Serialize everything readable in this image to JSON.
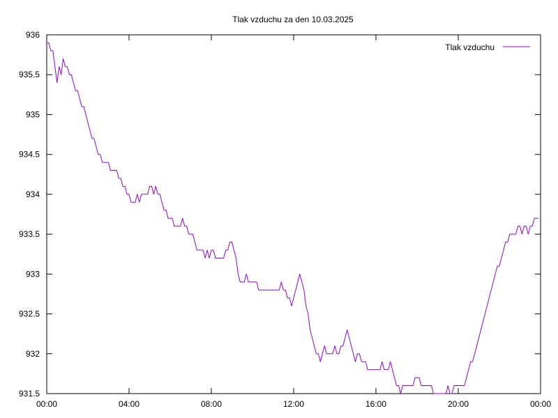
{
  "chart_data": {
    "type": "line",
    "title": "Tlak vzduchu za den 10.03.2025",
    "xlabel": "",
    "ylabel": "",
    "x_unit": "hours",
    "xlim": [
      0,
      24
    ],
    "ylim": [
      931.5,
      936
    ],
    "yticks": [
      {
        "value": 931.5,
        "label": "931.5"
      },
      {
        "value": 932,
        "label": "932"
      },
      {
        "value": 932.5,
        "label": "932.5"
      },
      {
        "value": 933,
        "label": "933"
      },
      {
        "value": 933.5,
        "label": "933.5"
      },
      {
        "value": 934,
        "label": "934"
      },
      {
        "value": 934.5,
        "label": "934.5"
      },
      {
        "value": 935,
        "label": "935"
      },
      {
        "value": 935.5,
        "label": "935.5"
      },
      {
        "value": 936,
        "label": "936"
      }
    ],
    "xticks": [
      {
        "value": 0,
        "label": "00:00"
      },
      {
        "value": 4,
        "label": "04:00"
      },
      {
        "value": 8,
        "label": "08:00"
      },
      {
        "value": 12,
        "label": "12:00"
      },
      {
        "value": 16,
        "label": "16:00"
      },
      {
        "value": 20,
        "label": "20:00"
      },
      {
        "value": 24,
        "label": "00:00"
      }
    ],
    "legend_position": "top-right",
    "series": [
      {
        "name": "Tlak vzduchu",
        "color": "#9400d3",
        "points": [
          [
            0.0,
            935.9
          ],
          [
            0.1,
            935.9
          ],
          [
            0.2,
            935.8
          ],
          [
            0.3,
            935.8
          ],
          [
            0.4,
            935.6
          ],
          [
            0.5,
            935.4
          ],
          [
            0.6,
            935.6
          ],
          [
            0.7,
            935.5
          ],
          [
            0.8,
            935.7
          ],
          [
            0.9,
            935.6
          ],
          [
            1.0,
            935.6
          ],
          [
            1.1,
            935.5
          ],
          [
            1.2,
            935.5
          ],
          [
            1.3,
            935.4
          ],
          [
            1.4,
            935.3
          ],
          [
            1.5,
            935.3
          ],
          [
            1.6,
            935.2
          ],
          [
            1.7,
            935.1
          ],
          [
            1.8,
            935.1
          ],
          [
            1.9,
            935.0
          ],
          [
            2.0,
            934.9
          ],
          [
            2.1,
            934.8
          ],
          [
            2.2,
            934.7
          ],
          [
            2.3,
            934.7
          ],
          [
            2.4,
            934.6
          ],
          [
            2.5,
            934.5
          ],
          [
            2.6,
            934.5
          ],
          [
            2.7,
            934.4
          ],
          [
            2.8,
            934.4
          ],
          [
            2.9,
            934.4
          ],
          [
            3.0,
            934.4
          ],
          [
            3.1,
            934.3
          ],
          [
            3.2,
            934.3
          ],
          [
            3.3,
            934.3
          ],
          [
            3.4,
            934.3
          ],
          [
            3.5,
            934.2
          ],
          [
            3.6,
            934.2
          ],
          [
            3.7,
            934.1
          ],
          [
            3.8,
            934.1
          ],
          [
            3.9,
            934.0
          ],
          [
            4.0,
            934.0
          ],
          [
            4.1,
            933.9
          ],
          [
            4.2,
            933.9
          ],
          [
            4.3,
            933.9
          ],
          [
            4.4,
            934.0
          ],
          [
            4.5,
            933.9
          ],
          [
            4.6,
            934.0
          ],
          [
            4.7,
            934.0
          ],
          [
            4.8,
            934.0
          ],
          [
            4.9,
            934.0
          ],
          [
            5.0,
            934.1
          ],
          [
            5.1,
            934.1
          ],
          [
            5.2,
            934.0
          ],
          [
            5.3,
            934.1
          ],
          [
            5.4,
            934.0
          ],
          [
            5.5,
            934.0
          ],
          [
            5.6,
            933.9
          ],
          [
            5.7,
            933.8
          ],
          [
            5.8,
            933.8
          ],
          [
            5.9,
            933.7
          ],
          [
            6.0,
            933.7
          ],
          [
            6.1,
            933.7
          ],
          [
            6.2,
            933.6
          ],
          [
            6.3,
            933.6
          ],
          [
            6.4,
            933.6
          ],
          [
            6.5,
            933.6
          ],
          [
            6.6,
            933.7
          ],
          [
            6.7,
            933.6
          ],
          [
            6.8,
            933.6
          ],
          [
            6.9,
            933.5
          ],
          [
            7.0,
            933.5
          ],
          [
            7.1,
            933.5
          ],
          [
            7.2,
            933.4
          ],
          [
            7.3,
            933.3
          ],
          [
            7.4,
            933.3
          ],
          [
            7.5,
            933.3
          ],
          [
            7.6,
            933.3
          ],
          [
            7.7,
            933.2
          ],
          [
            7.8,
            933.3
          ],
          [
            7.9,
            933.2
          ],
          [
            8.0,
            933.3
          ],
          [
            8.1,
            933.3
          ],
          [
            8.2,
            933.2
          ],
          [
            8.3,
            933.2
          ],
          [
            8.4,
            933.2
          ],
          [
            8.5,
            933.2
          ],
          [
            8.6,
            933.2
          ],
          [
            8.7,
            933.3
          ],
          [
            8.8,
            933.3
          ],
          [
            8.9,
            933.4
          ],
          [
            9.0,
            933.4
          ],
          [
            9.1,
            933.3
          ],
          [
            9.2,
            933.2
          ],
          [
            9.3,
            933.0
          ],
          [
            9.4,
            932.9
          ],
          [
            9.5,
            932.9
          ],
          [
            9.6,
            932.9
          ],
          [
            9.7,
            933.0
          ],
          [
            9.8,
            932.9
          ],
          [
            9.9,
            932.9
          ],
          [
            10.0,
            932.9
          ],
          [
            10.1,
            932.9
          ],
          [
            10.2,
            932.9
          ],
          [
            10.3,
            932.8
          ],
          [
            10.4,
            932.8
          ],
          [
            10.5,
            932.8
          ],
          [
            10.6,
            932.8
          ],
          [
            10.7,
            932.8
          ],
          [
            10.8,
            932.8
          ],
          [
            10.9,
            932.8
          ],
          [
            11.0,
            932.8
          ],
          [
            11.1,
            932.8
          ],
          [
            11.2,
            932.8
          ],
          [
            11.3,
            932.8
          ],
          [
            11.4,
            932.9
          ],
          [
            11.5,
            932.8
          ],
          [
            11.6,
            932.8
          ],
          [
            11.7,
            932.7
          ],
          [
            11.8,
            932.7
          ],
          [
            11.9,
            932.6
          ],
          [
            12.0,
            932.7
          ],
          [
            12.1,
            932.8
          ],
          [
            12.2,
            932.9
          ],
          [
            12.3,
            933.0
          ],
          [
            12.4,
            932.9
          ],
          [
            12.5,
            932.8
          ],
          [
            12.6,
            932.6
          ],
          [
            12.7,
            932.5
          ],
          [
            12.8,
            932.3
          ],
          [
            12.9,
            932.2
          ],
          [
            13.0,
            932.1
          ],
          [
            13.1,
            932.0
          ],
          [
            13.2,
            932.0
          ],
          [
            13.3,
            931.9
          ],
          [
            13.4,
            932.0
          ],
          [
            13.5,
            932.1
          ],
          [
            13.6,
            932.0
          ],
          [
            13.7,
            932.0
          ],
          [
            13.8,
            932.0
          ],
          [
            13.9,
            932.0
          ],
          [
            14.0,
            932.1
          ],
          [
            14.1,
            932.0
          ],
          [
            14.2,
            932.0
          ],
          [
            14.3,
            932.1
          ],
          [
            14.4,
            932.1
          ],
          [
            14.5,
            932.2
          ],
          [
            14.6,
            932.3
          ],
          [
            14.7,
            932.2
          ],
          [
            14.8,
            932.1
          ],
          [
            14.9,
            932.0
          ],
          [
            15.0,
            931.9
          ],
          [
            15.1,
            932.0
          ],
          [
            15.2,
            932.0
          ],
          [
            15.3,
            931.9
          ],
          [
            15.4,
            931.9
          ],
          [
            15.5,
            931.9
          ],
          [
            15.6,
            931.8
          ],
          [
            15.7,
            931.8
          ],
          [
            15.8,
            931.8
          ],
          [
            15.9,
            931.8
          ],
          [
            16.0,
            931.8
          ],
          [
            16.1,
            931.8
          ],
          [
            16.2,
            931.8
          ],
          [
            16.3,
            931.9
          ],
          [
            16.4,
            931.8
          ],
          [
            16.5,
            931.8
          ],
          [
            16.6,
            931.8
          ],
          [
            16.7,
            931.9
          ],
          [
            16.8,
            931.8
          ],
          [
            16.9,
            931.7
          ],
          [
            17.0,
            931.6
          ],
          [
            17.1,
            931.6
          ],
          [
            17.2,
            931.5
          ],
          [
            17.3,
            931.6
          ],
          [
            17.4,
            931.6
          ],
          [
            17.5,
            931.6
          ],
          [
            17.6,
            931.6
          ],
          [
            17.7,
            931.6
          ],
          [
            17.8,
            931.6
          ],
          [
            17.9,
            931.7
          ],
          [
            18.0,
            931.7
          ],
          [
            18.1,
            931.7
          ],
          [
            18.2,
            931.6
          ],
          [
            18.3,
            931.6
          ],
          [
            18.4,
            931.6
          ],
          [
            18.5,
            931.6
          ],
          [
            18.6,
            931.6
          ],
          [
            18.7,
            931.6
          ],
          [
            18.8,
            931.5
          ],
          [
            18.9,
            931.5
          ],
          [
            19.0,
            931.5
          ],
          [
            19.1,
            931.5
          ],
          [
            19.2,
            931.5
          ],
          [
            19.3,
            931.5
          ],
          [
            19.4,
            931.5
          ],
          [
            19.5,
            931.6
          ],
          [
            19.6,
            931.5
          ],
          [
            19.7,
            931.5
          ],
          [
            19.8,
            931.6
          ],
          [
            19.9,
            931.6
          ],
          [
            20.0,
            931.6
          ],
          [
            20.1,
            931.6
          ],
          [
            20.2,
            931.6
          ],
          [
            20.3,
            931.6
          ],
          [
            20.4,
            931.7
          ],
          [
            20.5,
            931.8
          ],
          [
            20.6,
            931.9
          ],
          [
            20.7,
            931.9
          ],
          [
            20.8,
            932.0
          ],
          [
            20.9,
            932.1
          ],
          [
            21.0,
            932.2
          ],
          [
            21.1,
            932.3
          ],
          [
            21.2,
            932.4
          ],
          [
            21.3,
            932.5
          ],
          [
            21.4,
            932.6
          ],
          [
            21.5,
            932.7
          ],
          [
            21.6,
            932.8
          ],
          [
            21.7,
            932.9
          ],
          [
            21.8,
            933.0
          ],
          [
            21.9,
            933.1
          ],
          [
            22.0,
            933.1
          ],
          [
            22.1,
            933.2
          ],
          [
            22.2,
            933.3
          ],
          [
            22.3,
            933.4
          ],
          [
            22.4,
            933.4
          ],
          [
            22.5,
            933.5
          ],
          [
            22.6,
            933.5
          ],
          [
            22.7,
            933.5
          ],
          [
            22.8,
            933.5
          ],
          [
            22.9,
            933.6
          ],
          [
            23.0,
            933.6
          ],
          [
            23.1,
            933.5
          ],
          [
            23.2,
            933.6
          ],
          [
            23.3,
            933.6
          ],
          [
            23.4,
            933.5
          ],
          [
            23.5,
            933.6
          ],
          [
            23.6,
            933.6
          ],
          [
            23.7,
            933.7
          ],
          [
            23.8,
            933.7
          ],
          [
            23.9,
            933.7
          ]
        ]
      }
    ]
  }
}
